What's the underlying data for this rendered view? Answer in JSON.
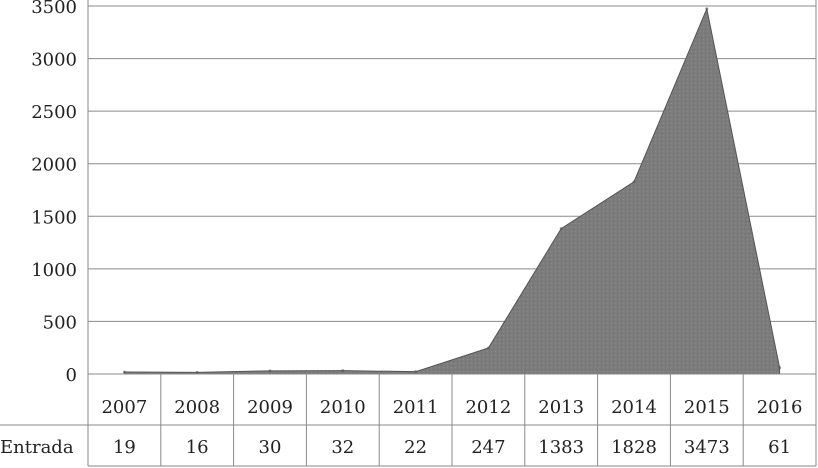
{
  "chart_data": {
    "type": "area",
    "title": "",
    "xlabel": "",
    "ylabel": "",
    "ylim": [
      0,
      3500
    ],
    "yticks": [
      0,
      500,
      1000,
      1500,
      2000,
      2500,
      3000,
      3500
    ],
    "grid": true,
    "categories": [
      "2007",
      "2008",
      "2009",
      "2010",
      "2011",
      "2012",
      "2013",
      "2014",
      "2015",
      "2016"
    ],
    "series": [
      {
        "name": "Entrada",
        "values": [
          19,
          16,
          30,
          32,
          22,
          247,
          1383,
          1828,
          3473,
          61
        ]
      }
    ],
    "colors": {
      "fill": "#7a7a7a",
      "stroke": "#555555",
      "grid": "#8a8a8a"
    }
  }
}
